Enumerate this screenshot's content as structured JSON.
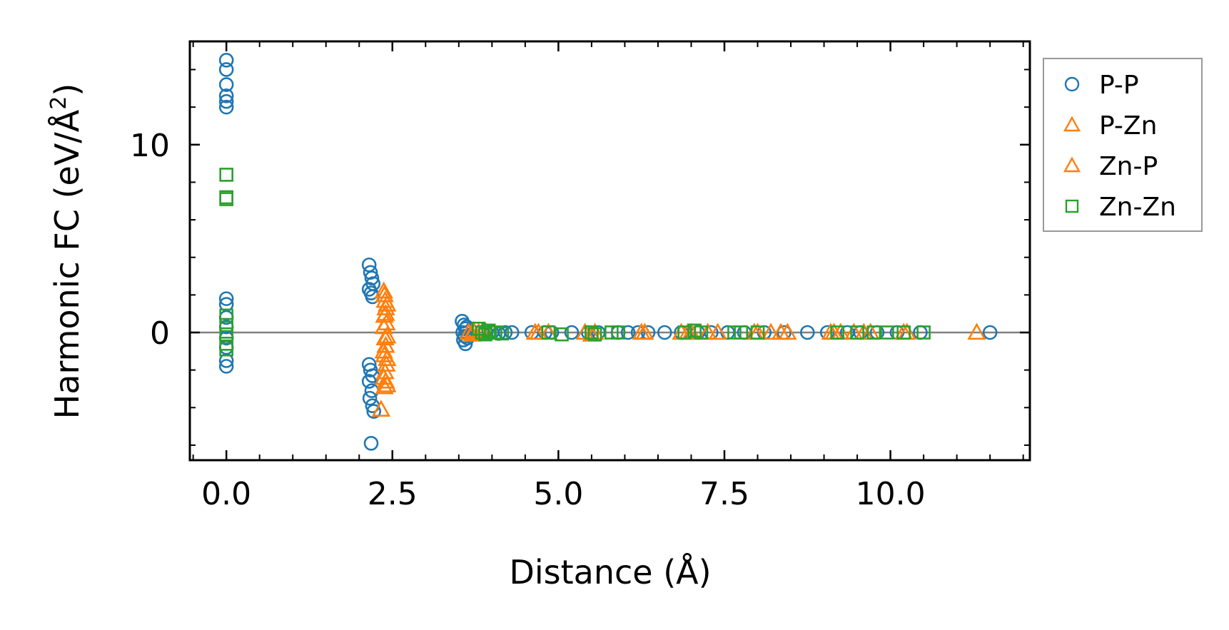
{
  "chart_data": {
    "type": "scatter",
    "title": "",
    "xlabel": "Distance (Å)",
    "ylabel_main": "Harmonic FC (eV/Å",
    "ylabel_sup": "2",
    "ylabel_close": ")",
    "xlim": [
      -0.55,
      12.1
    ],
    "ylim": [
      -6.8,
      15.5
    ],
    "xticks": [
      0.0,
      2.5,
      5.0,
      7.5,
      10.0
    ],
    "xtick_labels": [
      "0.0",
      "2.5",
      "5.0",
      "7.5",
      "10.0"
    ],
    "yticks": [
      0,
      10
    ],
    "ytick_labels": [
      "0",
      "10"
    ],
    "x_minor_step": 0.5,
    "y_minor_step": 2,
    "zero_line": true,
    "grid": false,
    "legend_position": "outside-right-top",
    "series": [
      {
        "name": "P-P",
        "marker": "circle",
        "color": "#1f77b4",
        "points": [
          [
            0,
            14.5
          ],
          [
            0,
            14.0
          ],
          [
            0,
            13.2
          ],
          [
            0,
            12.6
          ],
          [
            0,
            12.3
          ],
          [
            0,
            12.0
          ],
          [
            0,
            1.8
          ],
          [
            0,
            1.5
          ],
          [
            0,
            0.8
          ],
          [
            0,
            0.3
          ],
          [
            0,
            -0.3
          ],
          [
            0,
            -0.8
          ],
          [
            0,
            -1.5
          ],
          [
            0,
            -1.8
          ],
          [
            2.15,
            3.6
          ],
          [
            2.17,
            3.2
          ],
          [
            2.19,
            2.9
          ],
          [
            2.21,
            2.6
          ],
          [
            2.15,
            2.3
          ],
          [
            2.18,
            2.1
          ],
          [
            2.2,
            1.9
          ],
          [
            2.15,
            -1.7
          ],
          [
            2.17,
            -2.0
          ],
          [
            2.2,
            -2.3
          ],
          [
            2.15,
            -2.6
          ],
          [
            2.19,
            -3.1
          ],
          [
            2.16,
            -3.5
          ],
          [
            2.2,
            -3.9
          ],
          [
            2.22,
            -4.2
          ],
          [
            2.18,
            -5.9
          ],
          [
            3.55,
            0.6
          ],
          [
            3.58,
            0.4
          ],
          [
            3.6,
            0.2
          ],
          [
            3.56,
            0.0
          ],
          [
            3.59,
            -0.2
          ],
          [
            3.57,
            -0.4
          ],
          [
            3.6,
            -0.6
          ],
          [
            3.62,
            0.3
          ],
          [
            3.63,
            -0.3
          ],
          [
            3.9,
            0.1
          ],
          [
            4.0,
            0.0
          ],
          [
            4.1,
            -0.05
          ],
          [
            4.2,
            0.0
          ],
          [
            4.3,
            0.0
          ],
          [
            4.6,
            0.0
          ],
          [
            4.8,
            0.0
          ],
          [
            4.9,
            0.0
          ],
          [
            5.2,
            0.0
          ],
          [
            5.45,
            0.0
          ],
          [
            5.6,
            0.0
          ],
          [
            5.9,
            0.0
          ],
          [
            6.05,
            0.0
          ],
          [
            6.2,
            0.0
          ],
          [
            6.35,
            0.0
          ],
          [
            6.6,
            0.0
          ],
          [
            6.85,
            0.0
          ],
          [
            7.1,
            0.0
          ],
          [
            7.3,
            0.0
          ],
          [
            7.55,
            0.0
          ],
          [
            7.8,
            0.0
          ],
          [
            8.1,
            0.0
          ],
          [
            8.4,
            0.0
          ],
          [
            8.75,
            0.0
          ],
          [
            9.05,
            0.0
          ],
          [
            9.35,
            0.0
          ],
          [
            9.55,
            0.0
          ],
          [
            9.8,
            0.0
          ],
          [
            10.1,
            0.0
          ],
          [
            10.45,
            0.0
          ],
          [
            11.5,
            0.0
          ]
        ]
      },
      {
        "name": "P-Zn",
        "marker": "triangle",
        "color": "#ff7f0e",
        "points": [
          [
            2.38,
            2.0
          ],
          [
            2.39,
            1.7
          ],
          [
            2.4,
            1.3
          ],
          [
            2.38,
            0.9
          ],
          [
            2.41,
            0.5
          ],
          [
            2.39,
            -0.3
          ],
          [
            2.4,
            -0.7
          ],
          [
            2.38,
            -1.2
          ],
          [
            2.41,
            -1.7
          ],
          [
            2.39,
            -2.1
          ],
          [
            2.4,
            -2.6
          ],
          [
            2.38,
            -2.9
          ],
          [
            2.33,
            -4.1
          ],
          [
            3.65,
            0.0
          ],
          [
            3.72,
            0.1
          ],
          [
            3.8,
            0.0
          ],
          [
            4.65,
            0.0
          ],
          [
            4.85,
            0.0
          ],
          [
            5.4,
            0.0
          ],
          [
            5.55,
            0.0
          ],
          [
            6.3,
            0.0
          ],
          [
            6.85,
            0.0
          ],
          [
            7.0,
            0.0
          ],
          [
            7.4,
            0.0
          ],
          [
            8.0,
            0.0
          ],
          [
            8.2,
            0.0
          ],
          [
            8.45,
            0.0
          ],
          [
            9.1,
            0.0
          ],
          [
            9.25,
            0.0
          ],
          [
            9.45,
            0.0
          ],
          [
            9.7,
            0.0
          ],
          [
            10.2,
            0.0
          ],
          [
            11.3,
            0.0
          ]
        ]
      },
      {
        "name": "Zn-P",
        "marker": "triangle",
        "color": "#ff7f0e",
        "points": [
          [
            2.37,
            2.2
          ],
          [
            2.42,
            1.5
          ],
          [
            2.4,
            1.0
          ],
          [
            2.37,
            0.3
          ],
          [
            2.42,
            -0.2
          ],
          [
            2.37,
            -1.0
          ],
          [
            2.42,
            -1.4
          ],
          [
            2.37,
            -2.4
          ],
          [
            2.42,
            -2.8
          ],
          [
            3.7,
            -0.1
          ],
          [
            3.85,
            0.0
          ],
          [
            4.7,
            0.0
          ],
          [
            5.5,
            -0.1
          ],
          [
            6.25,
            0.0
          ],
          [
            6.95,
            0.0
          ],
          [
            7.25,
            0.0
          ],
          [
            7.95,
            0.0
          ],
          [
            8.35,
            0.0
          ],
          [
            9.15,
            0.0
          ],
          [
            9.6,
            0.0
          ],
          [
            10.25,
            0.0
          ]
        ]
      },
      {
        "name": "Zn-Zn",
        "marker": "square",
        "color": "#2ca02c",
        "points": [
          [
            0,
            8.4
          ],
          [
            0,
            7.2
          ],
          [
            0,
            7.1
          ],
          [
            0,
            0.9
          ],
          [
            0,
            0.4
          ],
          [
            0,
            -0.1
          ],
          [
            0,
            -0.6
          ],
          [
            0,
            -0.9
          ],
          [
            3.8,
            0.2
          ],
          [
            3.85,
            0.0
          ],
          [
            3.9,
            -0.1
          ],
          [
            3.95,
            0.1
          ],
          [
            4.05,
            0.0
          ],
          [
            4.15,
            -0.05
          ],
          [
            4.85,
            0.0
          ],
          [
            5.05,
            -0.1
          ],
          [
            5.5,
            0.0
          ],
          [
            5.55,
            -0.1
          ],
          [
            5.8,
            0.0
          ],
          [
            5.9,
            0.0
          ],
          [
            6.9,
            0.0
          ],
          [
            7.05,
            0.1
          ],
          [
            7.15,
            0.0
          ],
          [
            7.65,
            0.0
          ],
          [
            7.75,
            0.0
          ],
          [
            8.0,
            0.0
          ],
          [
            9.2,
            0.0
          ],
          [
            9.5,
            0.0
          ],
          [
            9.75,
            0.0
          ],
          [
            9.95,
            0.0
          ],
          [
            10.2,
            0.0
          ],
          [
            10.5,
            0.0
          ]
        ]
      }
    ]
  }
}
